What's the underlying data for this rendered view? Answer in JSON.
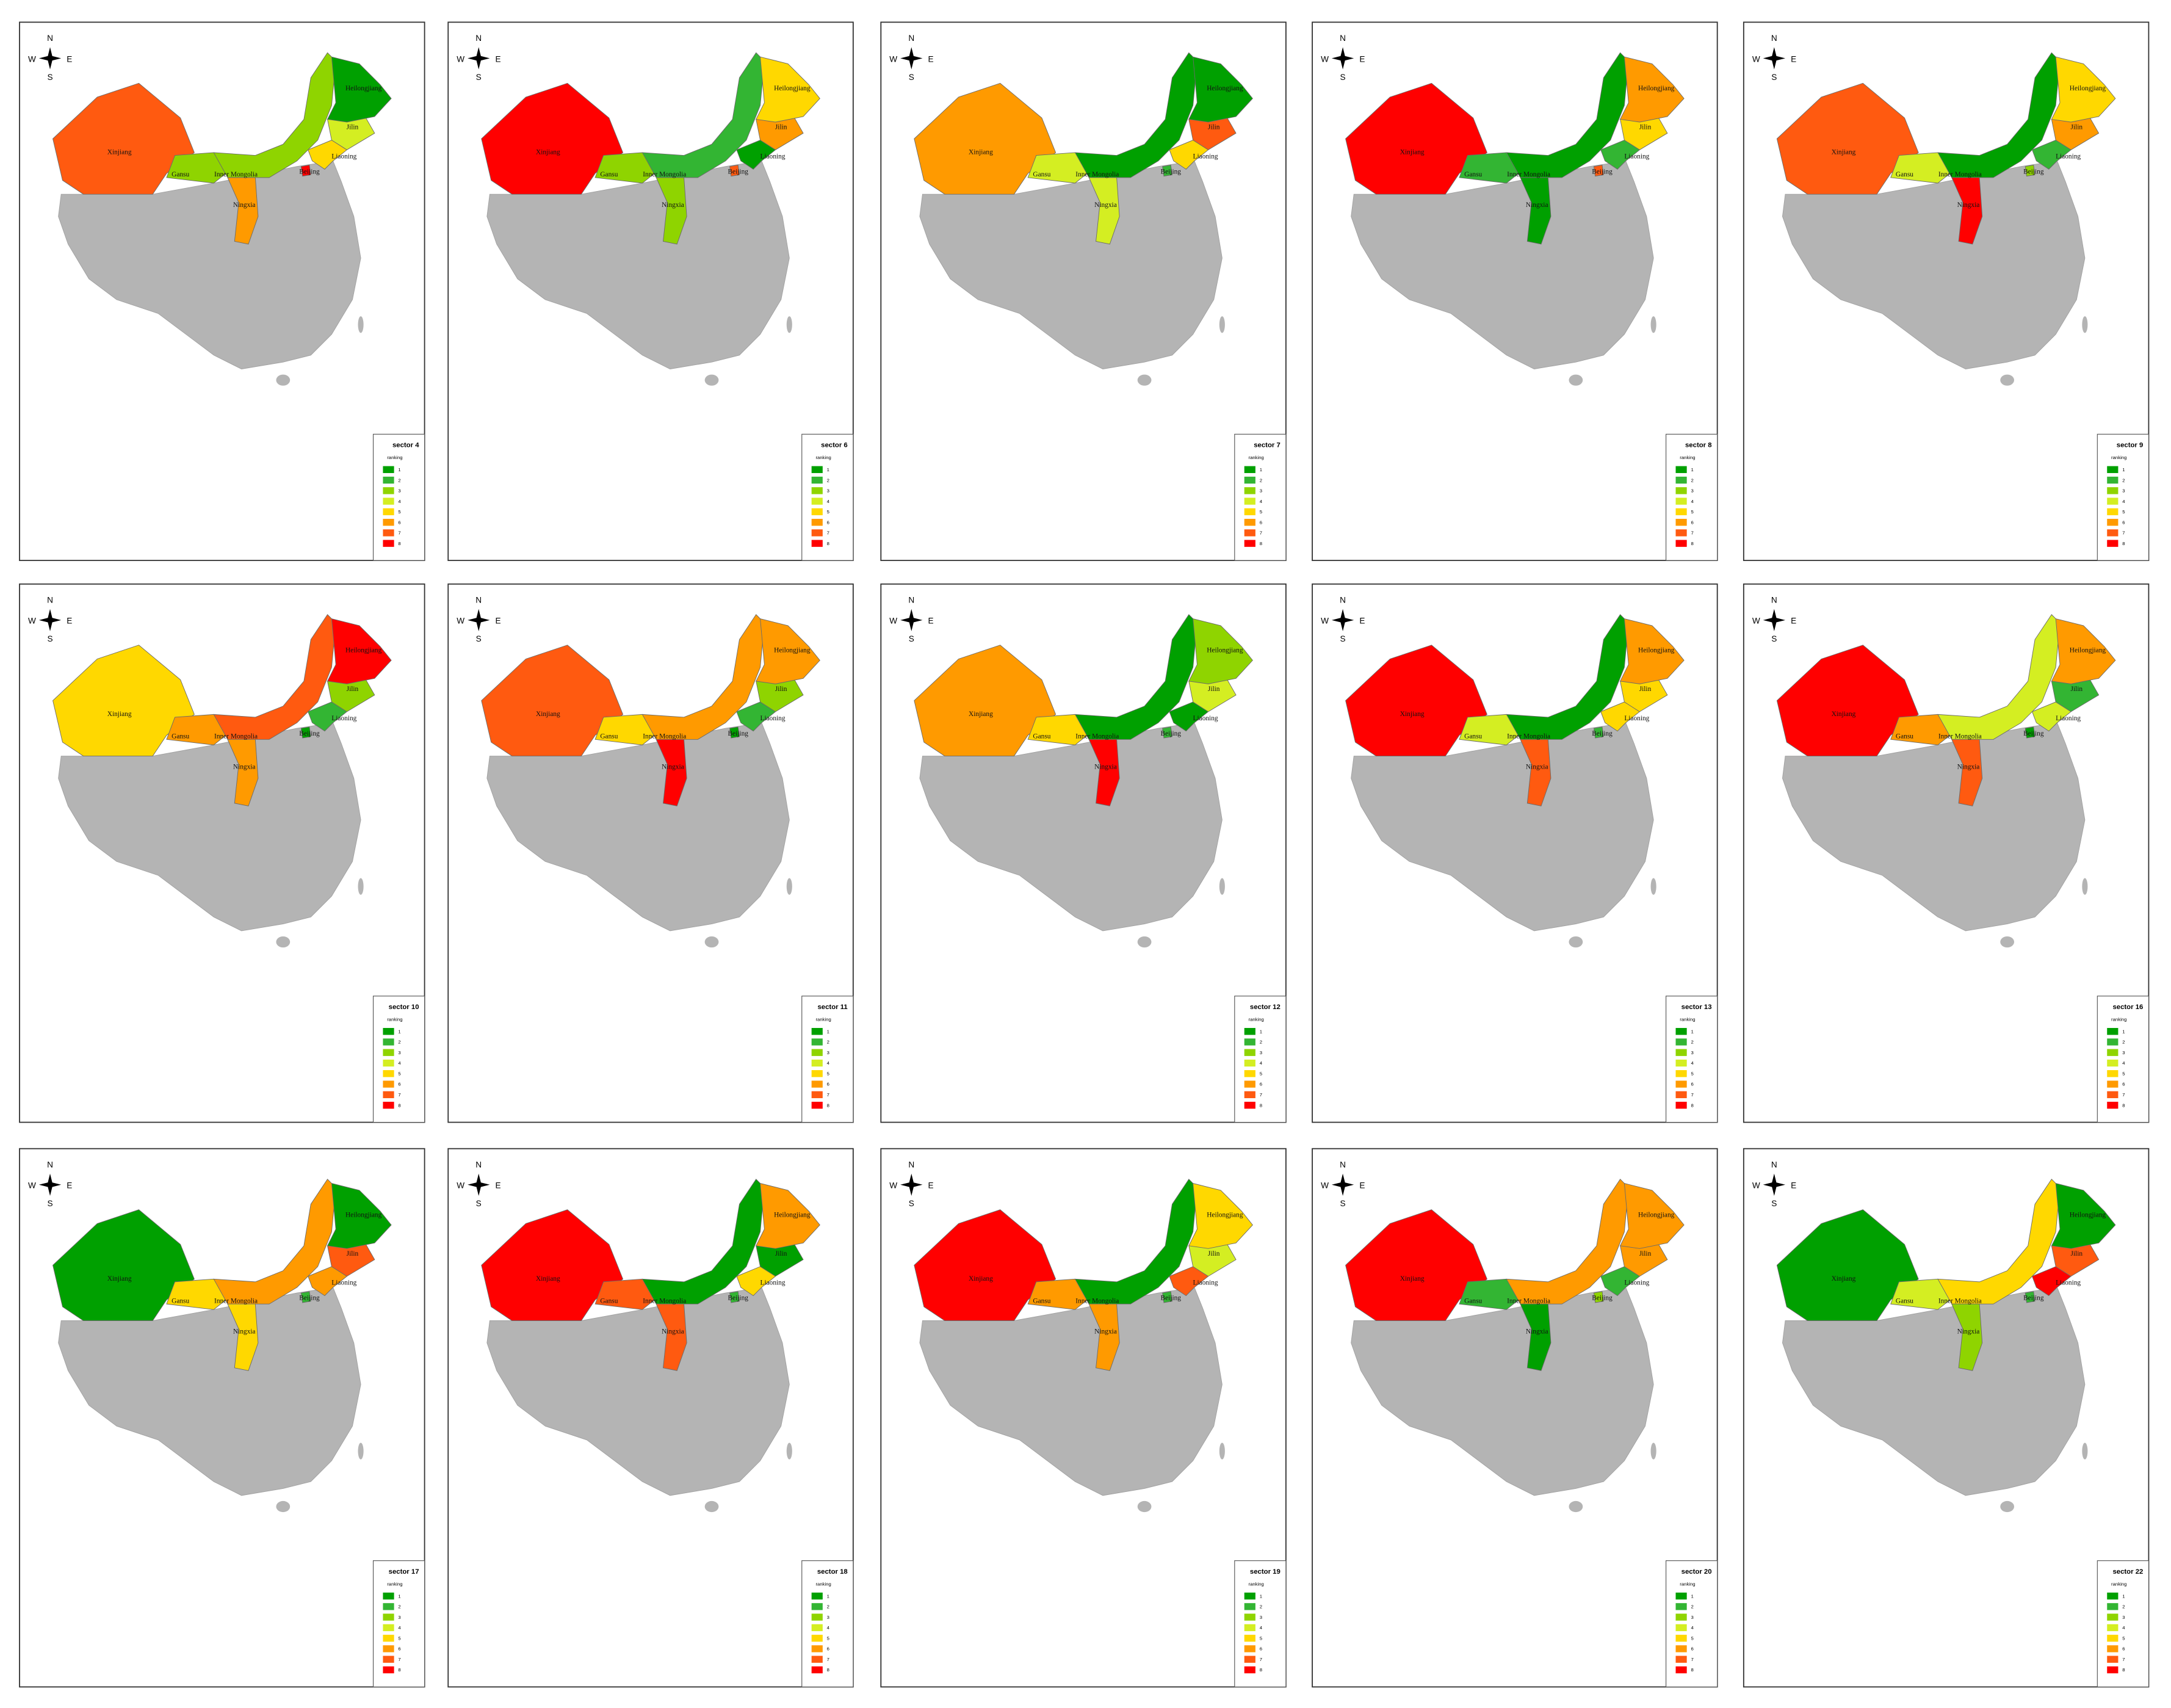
{
  "compass": {
    "n": "N",
    "e": "E",
    "s": "S",
    "w": "W"
  },
  "legend_title": "ranking",
  "legend_labels": [
    1,
    2,
    3,
    4,
    5,
    6,
    7,
    8
  ],
  "legend_colors": [
    "#00a000",
    "#33b533",
    "#8fd400",
    "#d4ee22",
    "#ffd800",
    "#ff9a00",
    "#ff5a10",
    "#ff0000"
  ],
  "provinces": [
    "Xinjiang",
    "Gansu",
    "Inner Mongolia",
    "Ningxia",
    "Beijing",
    "Liaoning",
    "Jilin",
    "Heilongjiang"
  ],
  "panels": [
    {
      "title": "sector 4",
      "ranks": [
        7,
        3,
        3,
        6,
        8,
        5,
        4,
        1
      ]
    },
    {
      "title": "sector 6",
      "ranks": [
        8,
        3,
        2,
        3,
        7,
        1,
        6,
        5
      ]
    },
    {
      "title": "sector 7",
      "ranks": [
        6,
        4,
        1,
        4,
        2,
        5,
        7,
        1
      ]
    },
    {
      "title": "sector 8",
      "ranks": [
        8,
        2,
        1,
        1,
        7,
        2,
        5,
        6
      ]
    },
    {
      "title": "sector 9",
      "ranks": [
        7,
        4,
        1,
        8,
        3,
        2,
        6,
        5
      ]
    },
    {
      "title": "sector 10",
      "ranks": [
        5,
        6,
        7,
        6,
        1,
        2,
        3,
        8
      ]
    },
    {
      "title": "sector 11",
      "ranks": [
        7,
        5,
        6,
        8,
        1,
        2,
        3,
        6
      ]
    },
    {
      "title": "sector 12",
      "ranks": [
        6,
        5,
        1,
        8,
        2,
        1,
        4,
        3
      ]
    },
    {
      "title": "sector 13",
      "ranks": [
        8,
        4,
        1,
        7,
        2,
        5,
        5,
        6
      ]
    },
    {
      "title": "sector 16",
      "ranks": [
        8,
        6,
        4,
        7,
        1,
        4,
        2,
        6
      ]
    },
    {
      "title": "sector 17",
      "ranks": [
        1,
        5,
        6,
        5,
        2,
        6,
        7,
        1
      ]
    },
    {
      "title": "sector 18",
      "ranks": [
        8,
        7,
        1,
        7,
        2,
        5,
        1,
        6
      ]
    },
    {
      "title": "sector 19",
      "ranks": [
        8,
        6,
        1,
        6,
        2,
        7,
        4,
        5
      ]
    },
    {
      "title": "sector 20",
      "ranks": [
        8,
        2,
        6,
        1,
        3,
        2,
        6,
        6
      ]
    },
    {
      "title": "sector 22",
      "ranks": [
        1,
        4,
        5,
        3,
        2,
        8,
        7,
        1
      ]
    }
  ]
}
